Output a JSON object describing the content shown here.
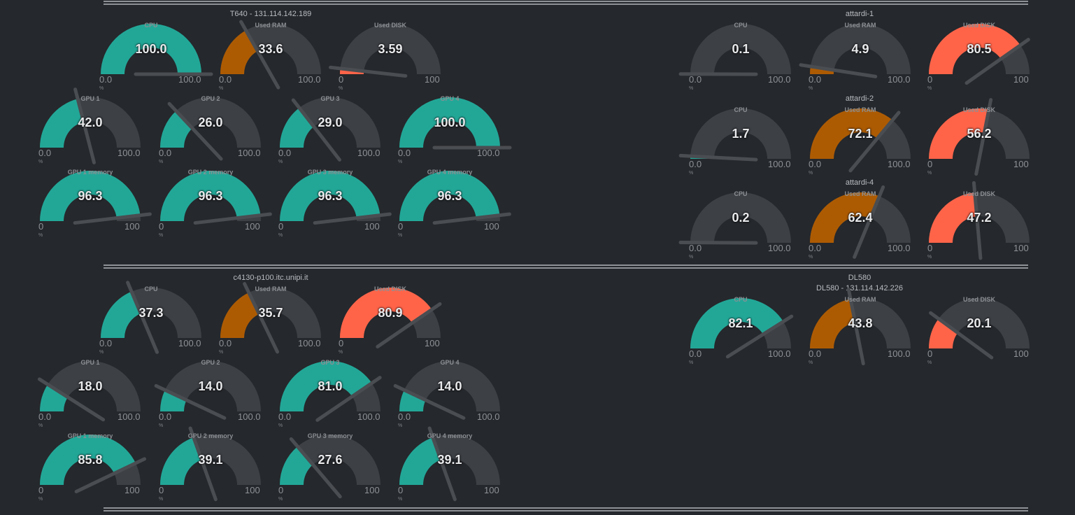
{
  "colors": {
    "background": "#25282c",
    "track": "#3d4045",
    "needle": "#4a4d51",
    "cpu_gpu": "#22a797",
    "ram": "#ad5b03",
    "disk": "#ff6449"
  },
  "hosts": [
    {
      "id": "t640",
      "title": "T640 - 131.114.142.189",
      "subtitle": "",
      "gauges": [
        {
          "label": "CPU",
          "value": "100.0",
          "v": 100,
          "min": "0.0",
          "max": "100.0",
          "unit": "%",
          "kind": "cpu_gpu"
        },
        {
          "label": "Used RAM",
          "value": "33.6",
          "v": 33.6,
          "min": "0.0",
          "max": "100.0",
          "unit": "%",
          "kind": "ram"
        },
        {
          "label": "Used DISK",
          "value": "3.59",
          "v": 3.59,
          "min": "0",
          "max": "100",
          "unit": "%",
          "kind": "disk"
        },
        {
          "label": "GPU 1",
          "value": "42.0",
          "v": 42,
          "min": "0.0",
          "max": "100.0",
          "unit": "%",
          "kind": "cpu_gpu"
        },
        {
          "label": "GPU 2",
          "value": "26.0",
          "v": 26,
          "min": "0.0",
          "max": "100.0",
          "unit": "%",
          "kind": "cpu_gpu"
        },
        {
          "label": "GPU 3",
          "value": "29.0",
          "v": 29,
          "min": "0.0",
          "max": "100.0",
          "unit": "%",
          "kind": "cpu_gpu"
        },
        {
          "label": "GPU 4",
          "value": "100.0",
          "v": 100,
          "min": "0.0",
          "max": "100.0",
          "unit": "%",
          "kind": "cpu_gpu"
        },
        {
          "label": "GPU 1 memory",
          "value": "96.3",
          "v": 96.3,
          "min": "0",
          "max": "100",
          "unit": "%",
          "kind": "cpu_gpu"
        },
        {
          "label": "GPU 2 memory",
          "value": "96.3",
          "v": 96.3,
          "min": "0",
          "max": "100",
          "unit": "%",
          "kind": "cpu_gpu"
        },
        {
          "label": "GPU 3 memory",
          "value": "96.3",
          "v": 96.3,
          "min": "0",
          "max": "100",
          "unit": "%",
          "kind": "cpu_gpu"
        },
        {
          "label": "GPU 4 memory",
          "value": "96.3",
          "v": 96.3,
          "min": "0",
          "max": "100",
          "unit": "%",
          "kind": "cpu_gpu"
        }
      ]
    },
    {
      "id": "attardi1",
      "title": "attardi-1",
      "subtitle": "",
      "gauges": [
        {
          "label": "CPU",
          "value": "0.1",
          "v": 0.1,
          "min": "0.0",
          "max": "100.0",
          "unit": "%",
          "kind": "cpu_gpu"
        },
        {
          "label": "Used RAM",
          "value": "4.9",
          "v": 4.9,
          "min": "0.0",
          "max": "100.0",
          "unit": "%",
          "kind": "ram"
        },
        {
          "label": "Used DISK",
          "value": "80.5",
          "v": 80.5,
          "min": "0",
          "max": "100",
          "unit": "%",
          "kind": "disk"
        }
      ]
    },
    {
      "id": "attardi2",
      "title": "attardi-2",
      "subtitle": "",
      "gauges": [
        {
          "label": "CPU",
          "value": "1.7",
          "v": 1.7,
          "min": "0.0",
          "max": "100.0",
          "unit": "%",
          "kind": "cpu_gpu"
        },
        {
          "label": "Used RAM",
          "value": "72.1",
          "v": 72.1,
          "min": "0.0",
          "max": "100.0",
          "unit": "%",
          "kind": "ram"
        },
        {
          "label": "Used DISK",
          "value": "56.2",
          "v": 56.2,
          "min": "0",
          "max": "100",
          "unit": "%",
          "kind": "disk"
        }
      ]
    },
    {
      "id": "attardi4",
      "title": "attardi-4",
      "subtitle": "",
      "gauges": [
        {
          "label": "CPU",
          "value": "0.2",
          "v": 0.2,
          "min": "0.0",
          "max": "100.0",
          "unit": "%",
          "kind": "cpu_gpu"
        },
        {
          "label": "Used RAM",
          "value": "62.4",
          "v": 62.4,
          "min": "0.0",
          "max": "100.0",
          "unit": "%",
          "kind": "ram"
        },
        {
          "label": "Used DISK",
          "value": "47.2",
          "v": 47.2,
          "min": "0",
          "max": "100",
          "unit": "%",
          "kind": "disk"
        }
      ]
    },
    {
      "id": "c4130",
      "title": "c4130-p100.itc.unipi.it",
      "subtitle": "",
      "gauges": [
        {
          "label": "CPU",
          "value": "37.3",
          "v": 37.3,
          "min": "0.0",
          "max": "100.0",
          "unit": "%",
          "kind": "cpu_gpu"
        },
        {
          "label": "Used RAM",
          "value": "35.7",
          "v": 35.7,
          "min": "0.0",
          "max": "100.0",
          "unit": "%",
          "kind": "ram"
        },
        {
          "label": "Used DISK",
          "value": "80.9",
          "v": 80.9,
          "min": "0",
          "max": "100",
          "unit": "%",
          "kind": "disk"
        },
        {
          "label": "GPU 1",
          "value": "18.0",
          "v": 18,
          "min": "0.0",
          "max": "100.0",
          "unit": "%",
          "kind": "cpu_gpu"
        },
        {
          "label": "GPU 2",
          "value": "14.0",
          "v": 14,
          "min": "0.0",
          "max": "100.0",
          "unit": "%",
          "kind": "cpu_gpu"
        },
        {
          "label": "GPU 3",
          "value": "81.0",
          "v": 81,
          "min": "0.0",
          "max": "100.0",
          "unit": "%",
          "kind": "cpu_gpu"
        },
        {
          "label": "GPU 4",
          "value": "14.0",
          "v": 14,
          "min": "0.0",
          "max": "100.0",
          "unit": "%",
          "kind": "cpu_gpu"
        },
        {
          "label": "GPU 1 memory",
          "value": "85.8",
          "v": 85.8,
          "min": "0",
          "max": "100",
          "unit": "%",
          "kind": "cpu_gpu"
        },
        {
          "label": "GPU 2 memory",
          "value": "39.1",
          "v": 39.1,
          "min": "0",
          "max": "100",
          "unit": "%",
          "kind": "cpu_gpu"
        },
        {
          "label": "GPU 3 memory",
          "value": "27.6",
          "v": 27.6,
          "min": "0",
          "max": "100",
          "unit": "%",
          "kind": "cpu_gpu"
        },
        {
          "label": "GPU 4 memory",
          "value": "39.1",
          "v": 39.1,
          "min": "0",
          "max": "100",
          "unit": "%",
          "kind": "cpu_gpu"
        }
      ]
    },
    {
      "id": "dl580",
      "title": "DL580",
      "subtitle": "DL580 - 131.114.142.226",
      "gauges": [
        {
          "label": "CPU",
          "value": "82.1",
          "v": 82.1,
          "min": "0.0",
          "max": "100.0",
          "unit": "%",
          "kind": "cpu_gpu"
        },
        {
          "label": "Used RAM",
          "value": "43.8",
          "v": 43.8,
          "min": "0.0",
          "max": "100.0",
          "unit": "%",
          "kind": "ram"
        },
        {
          "label": "Used DISK",
          "value": "20.1",
          "v": 20.1,
          "min": "0",
          "max": "100",
          "unit": "%",
          "kind": "disk"
        }
      ]
    }
  ]
}
